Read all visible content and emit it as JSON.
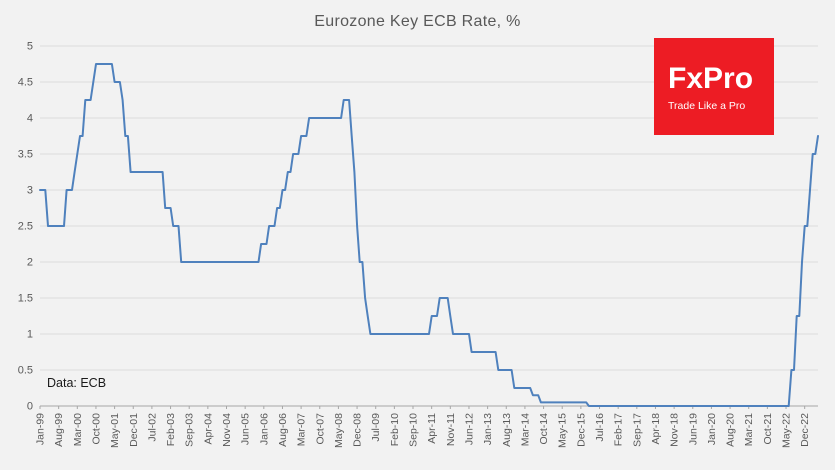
{
  "page": {
    "background": "#f2f2f2"
  },
  "logo": {
    "brand": "FxPro",
    "tagline": "Trade Like a Pro",
    "background": "#ed1c24",
    "text_color": "#ffffff"
  },
  "annotations": {
    "data_source": "Data: ECB"
  },
  "chart_data": {
    "type": "line",
    "title": "Eurozone Key ECB Rate, %",
    "xlabel": "",
    "ylabel": "",
    "ylim": [
      0,
      5
    ],
    "grid": true,
    "legend": false,
    "y_ticks": [
      0,
      0.5,
      1,
      1.5,
      2,
      2.5,
      3,
      3.5,
      4,
      4.5,
      5
    ],
    "x_tick_interval_months": 7,
    "months_total": 293,
    "x_tick_labels": [
      "Jan-99",
      "Aug-99",
      "Mar-00",
      "Oct-00",
      "May-01",
      "Dec-01",
      "Jul-02",
      "Feb-03",
      "Sep-03",
      "Apr-04",
      "Nov-04",
      "Jun-05",
      "Jan-06",
      "Aug-06",
      "Mar-07",
      "Oct-07",
      "May-08",
      "Dec-08",
      "Jul-09",
      "Feb-10",
      "Sep-10",
      "Apr-11",
      "Nov-11",
      "Jun-12",
      "Jan-13",
      "Aug-13",
      "Mar-14",
      "Oct-14",
      "May-15",
      "Dec-15",
      "Jul-16",
      "Feb-17",
      "Sep-17",
      "Apr-18",
      "Nov-18",
      "Jun-19",
      "Jan-20",
      "Aug-20",
      "Mar-21",
      "Oct-21",
      "May-22",
      "Dec-22"
    ],
    "series": [
      {
        "name": "Key ECB Rate",
        "color": "#4f81bd",
        "rate_changes": [
          [
            "Jan-99",
            3.0
          ],
          [
            "Apr-99",
            2.5
          ],
          [
            "Nov-99",
            3.0
          ],
          [
            "Feb-00",
            3.25
          ],
          [
            "Mar-00",
            3.5
          ],
          [
            "Apr-00",
            3.75
          ],
          [
            "Jun-00",
            4.25
          ],
          [
            "Sep-00",
            4.5
          ],
          [
            "Oct-00",
            4.75
          ],
          [
            "May-01",
            4.5
          ],
          [
            "Aug-01",
            4.25
          ],
          [
            "Sep-01",
            3.75
          ],
          [
            "Nov-01",
            3.25
          ],
          [
            "Dec-02",
            2.75
          ],
          [
            "Mar-03",
            2.5
          ],
          [
            "Jun-03",
            2.0
          ],
          [
            "Dec-05",
            2.25
          ],
          [
            "Mar-06",
            2.5
          ],
          [
            "Jun-06",
            2.75
          ],
          [
            "Aug-06",
            3.0
          ],
          [
            "Oct-06",
            3.25
          ],
          [
            "Dec-06",
            3.5
          ],
          [
            "Mar-07",
            3.75
          ],
          [
            "Jun-07",
            4.0
          ],
          [
            "Jul-08",
            4.25
          ],
          [
            "Oct-08",
            3.75
          ],
          [
            "Nov-08",
            3.25
          ],
          [
            "Dec-08",
            2.5
          ],
          [
            "Jan-09",
            2.0
          ],
          [
            "Mar-09",
            1.5
          ],
          [
            "Apr-09",
            1.25
          ],
          [
            "May-09",
            1.0
          ],
          [
            "Apr-11",
            1.25
          ],
          [
            "Jul-11",
            1.5
          ],
          [
            "Nov-11",
            1.25
          ],
          [
            "Dec-11",
            1.0
          ],
          [
            "Jul-12",
            0.75
          ],
          [
            "May-13",
            0.5
          ],
          [
            "Nov-13",
            0.25
          ],
          [
            "Jun-14",
            0.15
          ],
          [
            "Sep-14",
            0.05
          ],
          [
            "Mar-16",
            0.0
          ],
          [
            "Jul-22",
            0.5
          ],
          [
            "Sep-22",
            1.25
          ],
          [
            "Nov-22",
            2.0
          ],
          [
            "Dec-22",
            2.5
          ],
          [
            "Feb-23",
            3.0
          ],
          [
            "Mar-23",
            3.5
          ],
          [
            "May-23",
            3.75
          ]
        ]
      }
    ]
  }
}
